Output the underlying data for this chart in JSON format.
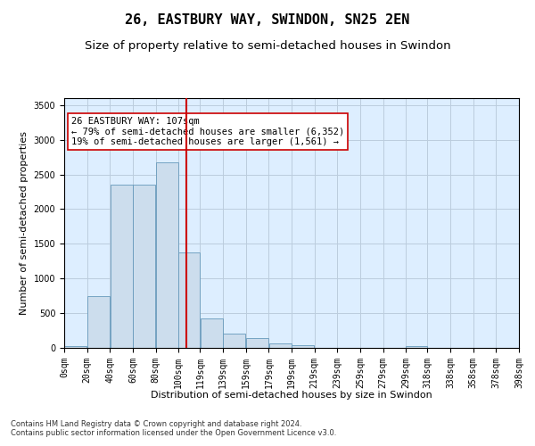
{
  "title": "26, EASTBURY WAY, SWINDON, SN25 2EN",
  "subtitle": "Size of property relative to semi-detached houses in Swindon",
  "xlabel": "Distribution of semi-detached houses by size in Swindon",
  "ylabel": "Number of semi-detached properties",
  "footnote": "Contains HM Land Registry data © Crown copyright and database right 2024.\nContains public sector information licensed under the Open Government Licence v3.0.",
  "bar_color": "#ccdded",
  "bar_edge_color": "#6699bb",
  "grid_color": "#bbccdd",
  "background_color": "#ddeeff",
  "annotation_box_color": "#ffffff",
  "vline_color": "#cc0000",
  "vline_x": 107,
  "annotation_text": "26 EASTBURY WAY: 107sqm\n← 79% of semi-detached houses are smaller (6,352)\n19% of semi-detached houses are larger (1,561) →",
  "bin_edges": [
    0,
    20,
    40,
    60,
    80,
    100,
    119,
    139,
    159,
    179,
    199,
    219,
    239,
    259,
    279,
    299,
    318,
    338,
    358,
    378,
    398
  ],
  "bin_heights": [
    25,
    740,
    2350,
    2350,
    2670,
    1380,
    430,
    200,
    140,
    65,
    35,
    0,
    0,
    0,
    0,
    25,
    0,
    0,
    0,
    0
  ],
  "ylim": [
    0,
    3600
  ],
  "yticks": [
    0,
    500,
    1000,
    1500,
    2000,
    2500,
    3000,
    3500
  ],
  "title_fontsize": 11,
  "subtitle_fontsize": 9.5,
  "axis_label_fontsize": 8,
  "tick_fontsize": 7,
  "annotation_fontsize": 7.5,
  "footnote_fontsize": 6
}
